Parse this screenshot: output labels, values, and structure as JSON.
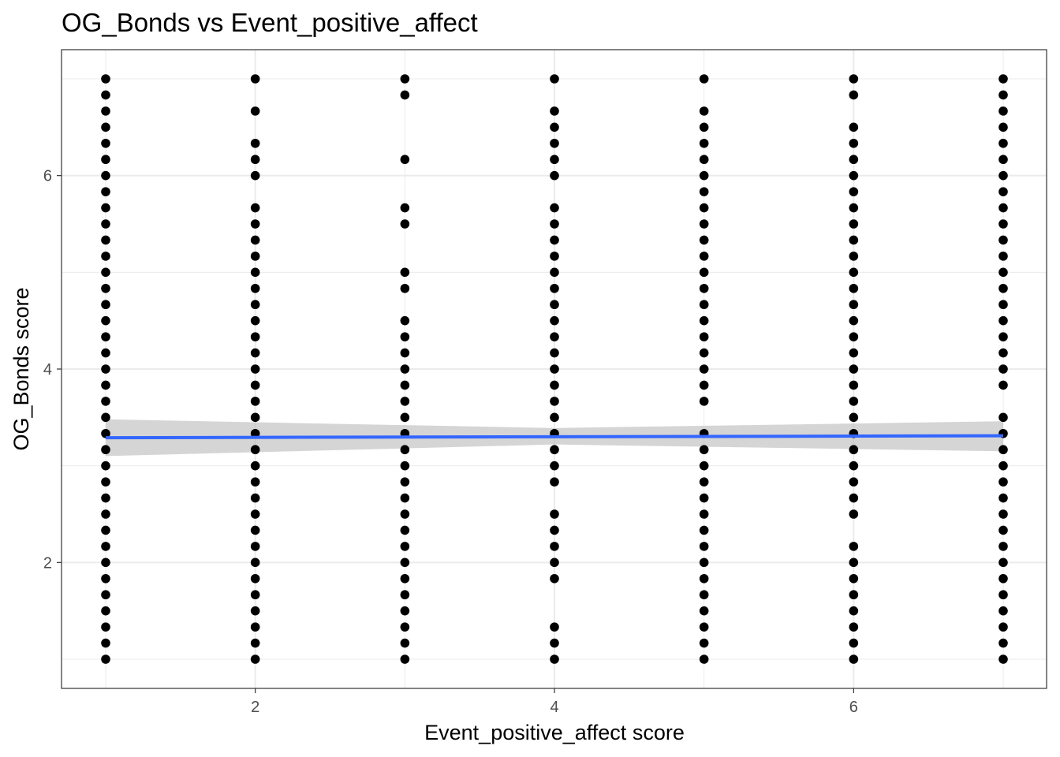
{
  "chart_data": {
    "type": "scatter",
    "title": "OG_Bonds vs Event_positive_affect",
    "xlabel": "Event_positive_affect score",
    "ylabel": "OG_Bonds score",
    "xlim": [
      0.7,
      7.2
    ],
    "ylim": [
      0.7,
      7.2
    ],
    "x_ticks": [
      2,
      4,
      6
    ],
    "y_ticks": [
      2,
      4,
      6
    ],
    "grid": true,
    "colors": {
      "points": "#000000",
      "trend": "#3366ff",
      "ribbon": "#bebebe",
      "grid": "#ebebeb",
      "panel_border": "#333333"
    },
    "series": [
      {
        "x": 1,
        "y": [
          1.0,
          1.1667,
          1.3333,
          1.5,
          1.6667,
          1.8333,
          2.0,
          2.1667,
          2.3333,
          2.5,
          2.6667,
          2.8333,
          3.0,
          3.1667,
          3.3333,
          3.5,
          3.6667,
          3.8333,
          4.0,
          4.1667,
          4.3333,
          4.5,
          4.6667,
          4.8333,
          5.0,
          5.1667,
          5.3333,
          5.5,
          5.6667,
          5.8333,
          6.0,
          6.1667,
          6.3333,
          6.5,
          6.6667,
          6.8333,
          7.0
        ]
      },
      {
        "x": 2,
        "y": [
          1.0,
          1.1667,
          1.3333,
          1.5,
          1.6667,
          1.8333,
          2.0,
          2.1667,
          2.3333,
          2.5,
          2.6667,
          2.8333,
          3.0,
          3.1667,
          3.3333,
          3.5,
          3.6667,
          3.8333,
          4.0,
          4.1667,
          4.3333,
          4.5,
          4.6667,
          4.8333,
          5.0,
          5.1667,
          5.3333,
          5.5,
          5.6667,
          6.0,
          6.1667,
          6.3333,
          6.6667,
          7.0
        ]
      },
      {
        "x": 3,
        "y": [
          1.0,
          1.1667,
          1.3333,
          1.5,
          1.6667,
          1.8333,
          2.0,
          2.1667,
          2.3333,
          2.5,
          2.6667,
          2.8333,
          3.0,
          3.1667,
          3.3333,
          3.5,
          3.6667,
          3.8333,
          4.0,
          4.1667,
          4.3333,
          4.5,
          4.8333,
          5.0,
          5.5,
          5.6667,
          6.1667,
          6.8333,
          7.0
        ]
      },
      {
        "x": 4,
        "y": [
          1.0,
          1.1667,
          1.3333,
          1.8333,
          2.0,
          2.1667,
          2.3333,
          2.5,
          2.8333,
          3.0,
          3.1667,
          3.3333,
          3.5,
          3.6667,
          3.8333,
          4.0,
          4.1667,
          4.3333,
          4.5,
          4.6667,
          4.8333,
          5.0,
          5.1667,
          5.3333,
          5.5,
          5.6667,
          6.0,
          6.1667,
          6.3333,
          6.5,
          6.6667,
          7.0
        ]
      },
      {
        "x": 5,
        "y": [
          1.0,
          1.1667,
          1.3333,
          1.5,
          1.6667,
          1.8333,
          2.0,
          2.1667,
          2.3333,
          2.5,
          2.6667,
          2.8333,
          3.0,
          3.1667,
          3.3333,
          3.6667,
          3.8333,
          4.0,
          4.1667,
          4.3333,
          4.5,
          4.6667,
          4.8333,
          5.0,
          5.1667,
          5.3333,
          5.5,
          5.6667,
          5.8333,
          6.0,
          6.1667,
          6.3333,
          6.5,
          6.6667,
          7.0
        ]
      },
      {
        "x": 6,
        "y": [
          1.0,
          1.1667,
          1.3333,
          1.5,
          1.6667,
          1.8333,
          2.0,
          2.1667,
          2.5,
          2.6667,
          2.8333,
          3.0,
          3.1667,
          3.3333,
          3.5,
          3.6667,
          3.8333,
          4.0,
          4.1667,
          4.3333,
          4.5,
          4.6667,
          4.8333,
          5.0,
          5.1667,
          5.3333,
          5.5,
          5.6667,
          5.8333,
          6.0,
          6.1667,
          6.3333,
          6.5,
          6.8333,
          7.0
        ]
      },
      {
        "x": 7,
        "y": [
          1.0,
          1.1667,
          1.3333,
          1.5,
          1.6667,
          1.8333,
          2.0,
          2.1667,
          2.3333,
          2.5,
          2.6667,
          2.8333,
          3.0,
          3.1667,
          3.3333,
          3.5,
          3.8333,
          4.0,
          4.1667,
          4.3333,
          4.5,
          4.6667,
          4.8333,
          5.0,
          5.1667,
          5.3333,
          5.5,
          5.6667,
          5.8333,
          6.0,
          6.1667,
          6.3333,
          6.5,
          6.6667,
          6.8333,
          7.0
        ]
      }
    ],
    "trend_line": {
      "x": [
        1,
        7
      ],
      "y": [
        3.29,
        3.31
      ]
    },
    "confidence_band": {
      "x": [
        1,
        4,
        7
      ],
      "lower": [
        3.1,
        3.22,
        3.15
      ],
      "upper": [
        3.48,
        3.39,
        3.46
      ]
    }
  }
}
